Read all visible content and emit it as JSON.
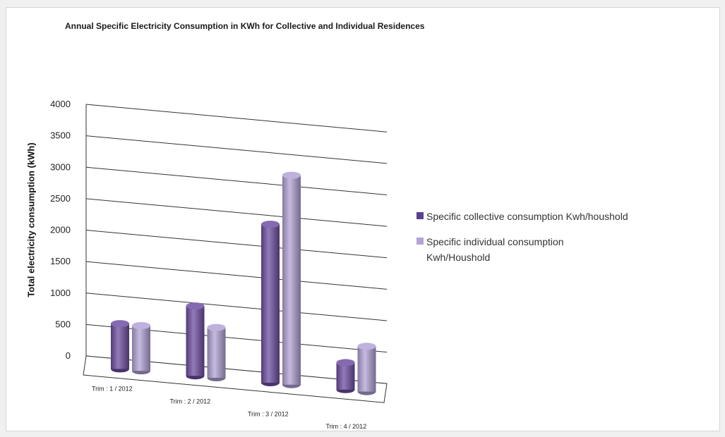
{
  "chart_data": {
    "type": "bar",
    "title": "Annual Specific Electricity Consumption in KWh for Collective and Individual Residences",
    "xlabel": "",
    "ylabel": "Total electricity consumption (kWh)",
    "categories": [
      "Trim : 1 / 2012",
      "Trim : 2 / 2012",
      "Trim : 3 / 2012",
      "Trim : 4 / 2012"
    ],
    "series": [
      {
        "name": "Specific collective consumption Kwh/houshold",
        "values": [
          720,
          1110,
          2520,
          430
        ],
        "color": "#6f4fa3"
      },
      {
        "name": "Specific individual consumption Kwh/Houshold",
        "values": [
          720,
          800,
          3330,
          720
        ],
        "color": "#b3a3d6"
      }
    ],
    "ylim": [
      0,
      4000
    ],
    "yticks": [
      0,
      500,
      1000,
      1500,
      2000,
      2500,
      3000,
      3500,
      4000
    ],
    "grid": true,
    "legend_position": "right"
  }
}
